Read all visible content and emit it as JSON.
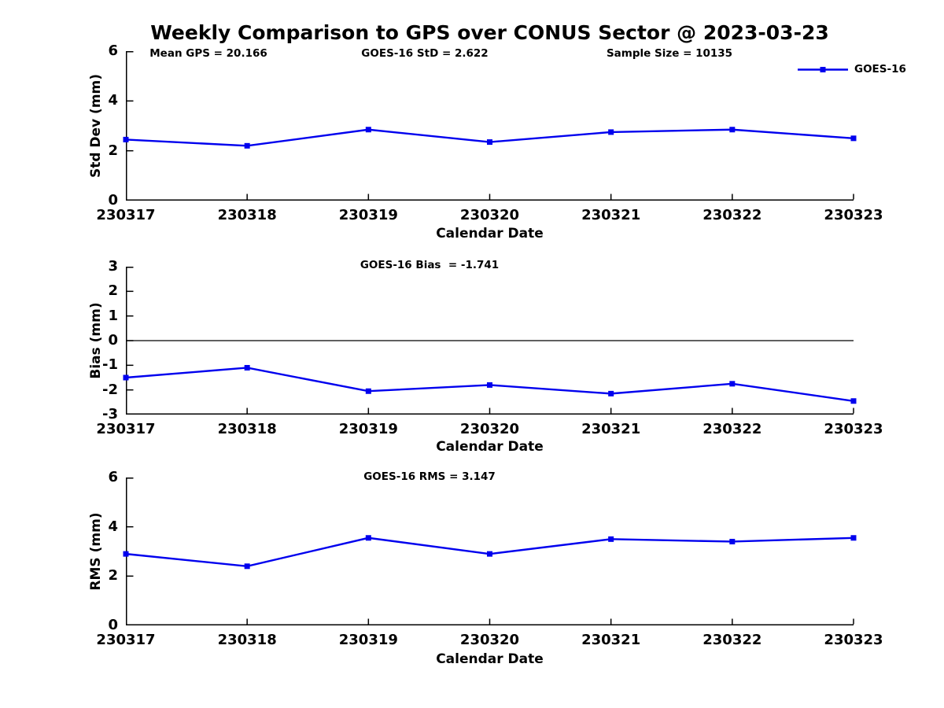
{
  "title": "Weekly Comparison to GPS over CONUS Sector @ 2023-03-23",
  "legend": {
    "label": "GOES-16",
    "position": "top-right"
  },
  "colors": {
    "line": "#0000EE",
    "axis": "#000000",
    "text": "#000000",
    "background": "#ffffff"
  },
  "chart_data": [
    {
      "type": "line",
      "name": "std-dev-panel",
      "categories": [
        "230317",
        "230318",
        "230319",
        "230320",
        "230321",
        "230322",
        "230323"
      ],
      "series": [
        {
          "name": "GOES-16",
          "values": [
            2.45,
            2.2,
            2.85,
            2.35,
            2.75,
            2.85,
            2.5
          ]
        }
      ],
      "xlabel": "Calendar Date",
      "ylabel": "Std Dev (mm)",
      "ylim": [
        0,
        6
      ],
      "yticks": [
        0,
        2,
        4,
        6
      ],
      "grid": false,
      "zero_line": false,
      "marker": "square",
      "annotations": [
        {
          "text": "Mean GPS = 20.166"
        },
        {
          "text": "GOES-16 StD = 2.622"
        },
        {
          "text": "Sample Size = 10135"
        }
      ]
    },
    {
      "type": "line",
      "name": "bias-panel",
      "categories": [
        "230317",
        "230318",
        "230319",
        "230320",
        "230321",
        "230322",
        "230323"
      ],
      "series": [
        {
          "name": "GOES-16",
          "values": [
            -1.5,
            -1.1,
            -2.05,
            -1.8,
            -2.15,
            -1.75,
            -2.45
          ]
        }
      ],
      "xlabel": "Calendar Date",
      "ylabel": "Bias (mm)",
      "ylim": [
        -3,
        3
      ],
      "yticks": [
        3,
        2,
        1,
        0,
        -1,
        -2,
        -3
      ],
      "grid": false,
      "zero_line": true,
      "marker": "square",
      "annotations": [
        {
          "text": "GOES-16 Bias  = -1.741"
        }
      ]
    },
    {
      "type": "line",
      "name": "rms-panel",
      "categories": [
        "230317",
        "230318",
        "230319",
        "230320",
        "230321",
        "230322",
        "230323"
      ],
      "series": [
        {
          "name": "GOES-16",
          "values": [
            2.9,
            2.4,
            3.55,
            2.9,
            3.5,
            3.4,
            3.55
          ]
        }
      ],
      "xlabel": "Calendar Date",
      "ylabel": "RMS (mm)",
      "ylim": [
        0,
        6
      ],
      "yticks": [
        0,
        2,
        4,
        6
      ],
      "grid": false,
      "zero_line": false,
      "marker": "square",
      "annotations": [
        {
          "text": "GOES-16 RMS = 3.147"
        }
      ]
    }
  ]
}
